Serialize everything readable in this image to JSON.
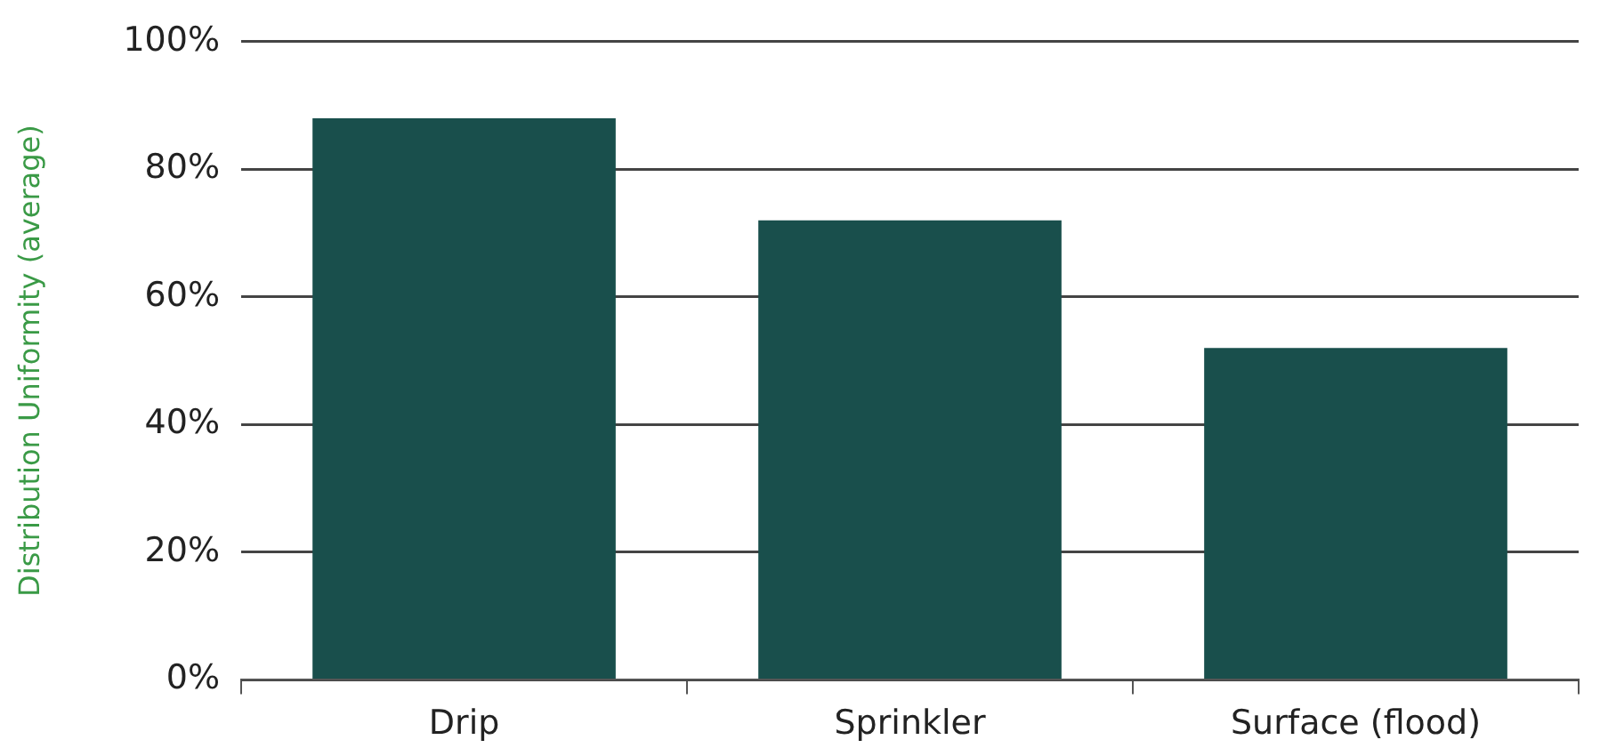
{
  "chart_data": {
    "type": "bar",
    "ylabel": "Distribution Uniformity (average)",
    "categories": [
      "Drip",
      "Sprinkler",
      "Surface (flood)"
    ],
    "values": [
      88,
      72,
      52
    ],
    "color": "#194f4c",
    "ylim": [
      0,
      100
    ],
    "yticks": [
      {
        "value": 0,
        "label": "0%"
      },
      {
        "value": 20,
        "label": "20%"
      },
      {
        "value": 40,
        "label": "40%"
      },
      {
        "value": 60,
        "label": "60%"
      },
      {
        "value": 80,
        "label": "80%"
      },
      {
        "value": 100,
        "label": "100%"
      }
    ],
    "grid": "y",
    "legend": false
  }
}
